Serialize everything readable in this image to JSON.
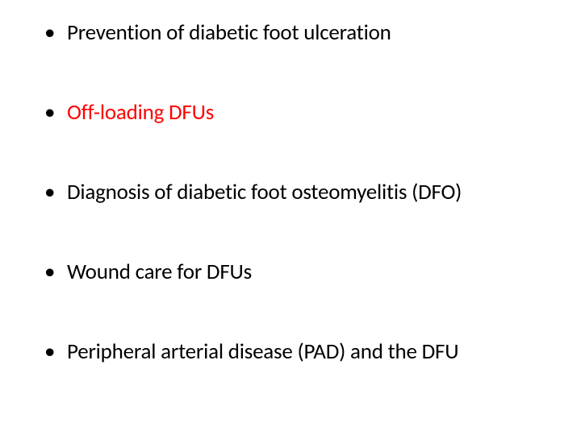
{
  "slide": {
    "background_color": "#ffffff",
    "text_color": "#000000",
    "highlight_color": "#ff0000",
    "bullet_char": "•",
    "font_family": "Calibri",
    "font_size_pt": 20,
    "items": [
      {
        "text": "Prevention of diabetic foot ulceration",
        "highlight": false
      },
      {
        "text": "Off-loading DFUs",
        "highlight": true
      },
      {
        "text": "Diagnosis of diabetic foot osteomyelitis (DFO)",
        "highlight": false
      },
      {
        "text": "Wound care for DFUs",
        "highlight": false
      },
      {
        "text": "Peripheral arterial disease (PAD) and the DFU",
        "highlight": false
      }
    ]
  }
}
